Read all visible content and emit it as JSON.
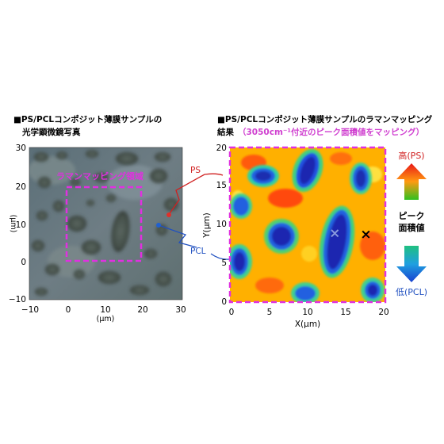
{
  "left_panel": {
    "title_line1": "■PS/PCLコンポジット薄膜サンプルの",
    "title_line2": "光学顕微鏡写真",
    "region_label": "ラマンマッピング領域",
    "x_unit": "(μm)",
    "y_unit": "(μm)"
  },
  "right_panel": {
    "title_line1": "■PS/PCLコンポジット薄膜サンプルのラマンマッピング",
    "title_line2_prefix": "結果",
    "title_line2_highlight": "（3050cm⁻¹付近のピーク面積値をマッピング）",
    "ps_label": "PS",
    "pcl_label": "PCL",
    "legend_high": "高(PS)",
    "legend_mid_line1": "ピーク",
    "legend_mid_line2": "面積値",
    "legend_low": "低(PCL)"
  },
  "colors": {
    "magenta": "#e030e0",
    "ps_marker": "#e0302a",
    "pcl_marker": "#2060d0",
    "grid_border": "#e030e0"
  },
  "chart_data": [
    {
      "type": "heatmap",
      "title": "光学顕微鏡写真",
      "x_ticks": [
        "−10",
        "0",
        "10",
        "20",
        "30"
      ],
      "y_ticks": [
        "30",
        "20",
        "10",
        "0",
        "−10"
      ],
      "xlabel": "(μm)",
      "ylabel": "(μm)",
      "xlim": [
        -10,
        30
      ],
      "ylim": [
        -10,
        30
      ],
      "mapping_region": {
        "x": [
          0,
          20
        ],
        "y": [
          0,
          20
        ]
      }
    },
    {
      "type": "heatmap",
      "title": "ラマンマッピング結果",
      "x_ticks": [
        "0",
        "5",
        "10",
        "15",
        "20"
      ],
      "y_ticks": [
        "20",
        "15",
        "10",
        "5",
        "0"
      ],
      "xlabel": "X(μm)",
      "ylabel": "Y(μm)",
      "xlim": [
        0,
        20
      ],
      "ylim": [
        0,
        20
      ],
      "markers": [
        {
          "symbol": "×",
          "color": "#8899dd",
          "x": 13.5,
          "y": 9
        },
        {
          "symbol": "×",
          "color": "#000000",
          "x": 17.5,
          "y": 8.8
        }
      ],
      "colorbar": {
        "high": "高(PS)",
        "low": "低(PCL)"
      }
    }
  ]
}
